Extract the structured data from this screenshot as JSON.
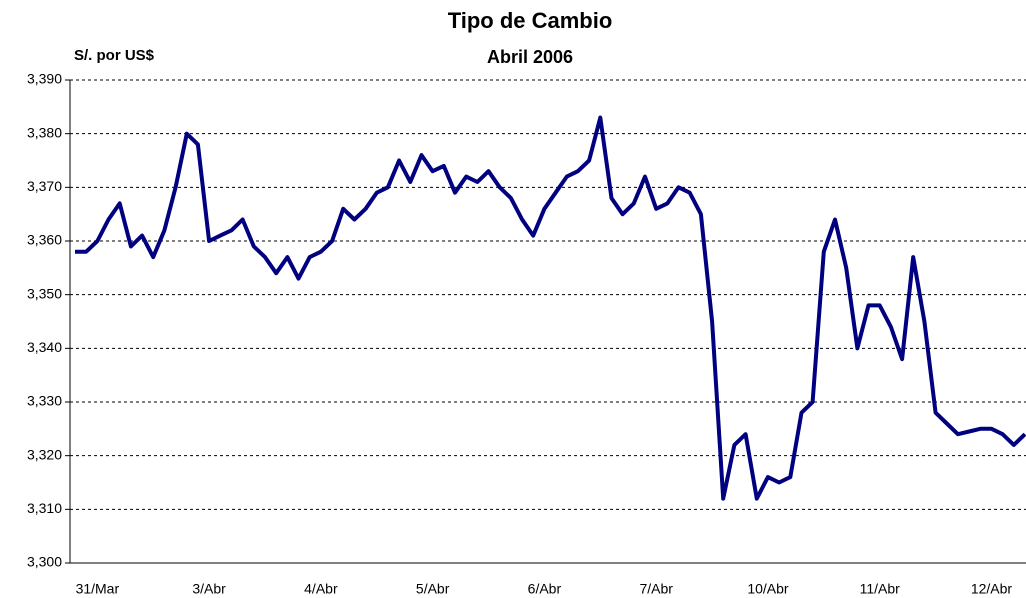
{
  "chart_data": {
    "type": "line",
    "title": "Tipo de Cambio",
    "subtitle": "Abril 2006",
    "y_label": "S/. por US$",
    "categories": [
      null,
      null,
      "31/Mar",
      null,
      null,
      null,
      null,
      null,
      null,
      null,
      null,
      null,
      "3/Abr",
      null,
      null,
      null,
      null,
      null,
      null,
      null,
      null,
      null,
      "4/Abr",
      null,
      null,
      null,
      null,
      null,
      null,
      null,
      null,
      null,
      "5/Abr",
      null,
      null,
      null,
      null,
      null,
      null,
      null,
      null,
      null,
      "6/Abr",
      null,
      null,
      null,
      null,
      null,
      null,
      null,
      null,
      null,
      "7/Abr",
      null,
      null,
      null,
      null,
      null,
      null,
      null,
      null,
      null,
      "10/Abr",
      null,
      null,
      null,
      null,
      null,
      null,
      null,
      null,
      null,
      "11/Abr",
      null,
      null,
      null,
      null,
      null,
      null,
      null,
      null,
      null,
      "12/Abr",
      null,
      null,
      null
    ],
    "series": [
      {
        "color": "#000080",
        "values": [
          3.358,
          3.358,
          3.36,
          3.364,
          3.367,
          3.359,
          3.361,
          3.357,
          3.362,
          3.37,
          3.38,
          3.378,
          3.36,
          3.361,
          3.362,
          3.364,
          3.359,
          3.357,
          3.354,
          3.357,
          3.353,
          3.357,
          3.358,
          3.36,
          3.366,
          3.364,
          3.366,
          3.369,
          3.37,
          3.375,
          3.371,
          3.376,
          3.373,
          3.374,
          3.369,
          3.372,
          3.371,
          3.373,
          3.37,
          3.368,
          3.364,
          3.361,
          3.366,
          3.369,
          3.372,
          3.373,
          3.375,
          3.383,
          3.368,
          3.365,
          3.367,
          3.372,
          3.366,
          3.367,
          3.37,
          3.369,
          3.365,
          3.345,
          3.312,
          3.322,
          3.324,
          3.312,
          3.316,
          3.315,
          3.316,
          3.328,
          3.33,
          3.358,
          3.364,
          3.355,
          3.34,
          3.348,
          3.348,
          3.344,
          3.338,
          3.357,
          3.345,
          3.328,
          3.326,
          3.324,
          3.3245,
          3.325,
          3.325,
          3.324,
          3.322,
          3.324
        ]
      }
    ],
    "ylim": [
      3.3,
      3.39
    ],
    "yticks": [
      {
        "value": 3.3,
        "label": "3,300"
      },
      {
        "value": 3.31,
        "label": "3,310"
      },
      {
        "value": 3.32,
        "label": "3,320"
      },
      {
        "value": 3.33,
        "label": "3,330"
      },
      {
        "value": 3.34,
        "label": "3,340"
      },
      {
        "value": 3.35,
        "label": "3,350"
      },
      {
        "value": 3.36,
        "label": "3,360"
      },
      {
        "value": 3.37,
        "label": "3,370"
      },
      {
        "value": 3.38,
        "label": "3,380"
      },
      {
        "value": 3.39,
        "label": "3,390"
      }
    ],
    "grid": true
  }
}
